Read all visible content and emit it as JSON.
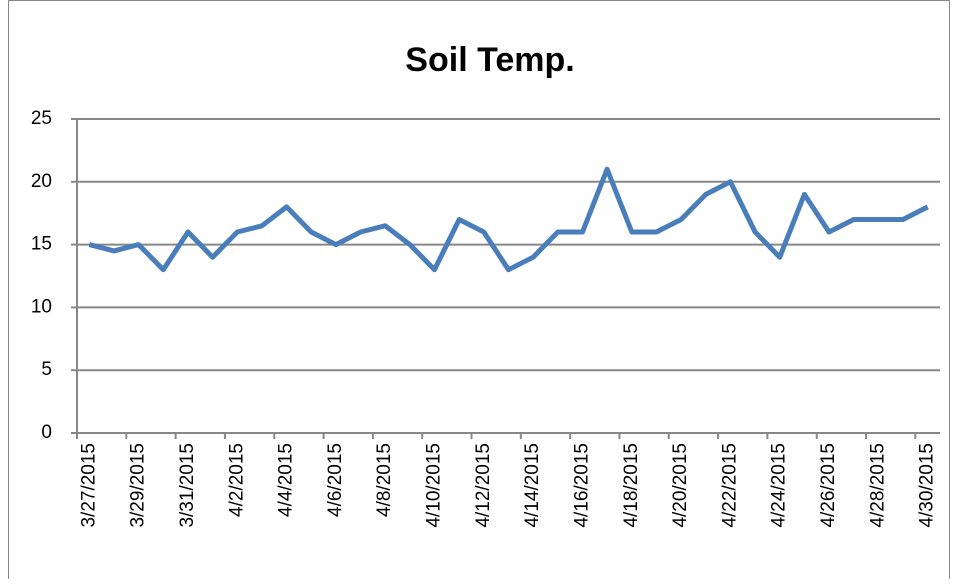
{
  "chart_data": {
    "type": "line",
    "title": "Soil Temp.",
    "categories": [
      "3/27/2015",
      null,
      "3/29/2015",
      null,
      "3/31/2015",
      null,
      "4/2/2015",
      null,
      "4/4/2015",
      null,
      "4/6/2015",
      null,
      "4/8/2015",
      null,
      "4/10/2015",
      null,
      "4/12/2015",
      null,
      "4/14/2015",
      null,
      "4/16/2015",
      null,
      "4/18/2015",
      null,
      "4/20/2015",
      null,
      "4/22/2015",
      null,
      "4/24/2015",
      null,
      "4/26/2015",
      null,
      "4/28/2015",
      null,
      "4/30/2015"
    ],
    "values": [
      15,
      14.5,
      15,
      13,
      16,
      14,
      16,
      16.5,
      18,
      16,
      15,
      16,
      16.5,
      15,
      13,
      17,
      16,
      13,
      14,
      16,
      16,
      21,
      16,
      16,
      17,
      19,
      20,
      16,
      14,
      19,
      16,
      17,
      17,
      17,
      18
    ],
    "color": "#4a7ebb",
    "ylim": [
      0,
      25
    ],
    "yticks": [
      0,
      5,
      10,
      15,
      20,
      25
    ],
    "grid": true
  }
}
